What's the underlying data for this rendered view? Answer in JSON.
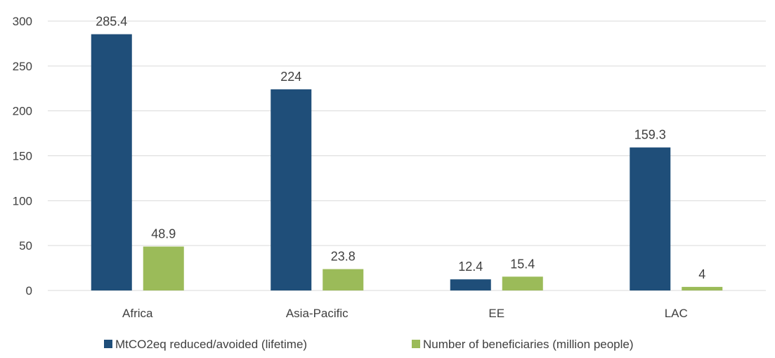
{
  "chart_data": {
    "type": "bar",
    "categories": [
      "Africa",
      "Asia-Pacific",
      "EE",
      "LAC"
    ],
    "series": [
      {
        "name": "MtCO2eq reduced/avoided (lifetime)",
        "values": [
          285.4,
          224,
          12.4,
          159.3
        ],
        "labels": [
          "285.4",
          "224",
          "12.4",
          "159.3"
        ],
        "color": "#1f4e79"
      },
      {
        "name": "Number of beneficiaries (million people)",
        "values": [
          48.9,
          23.8,
          15.4,
          4
        ],
        "labels": [
          "48.9",
          "23.8",
          "15.4",
          "4"
        ],
        "color": "#9bbb59"
      }
    ],
    "y_ticks": [
      0,
      50,
      100,
      150,
      200,
      250,
      300
    ],
    "y_tick_labels": [
      "0",
      "50",
      "100",
      "150",
      "200",
      "250",
      "300"
    ],
    "ylim": [
      0,
      300
    ],
    "grid": true,
    "legend_position": "bottom",
    "gridline_color": "#d9d9d9"
  }
}
